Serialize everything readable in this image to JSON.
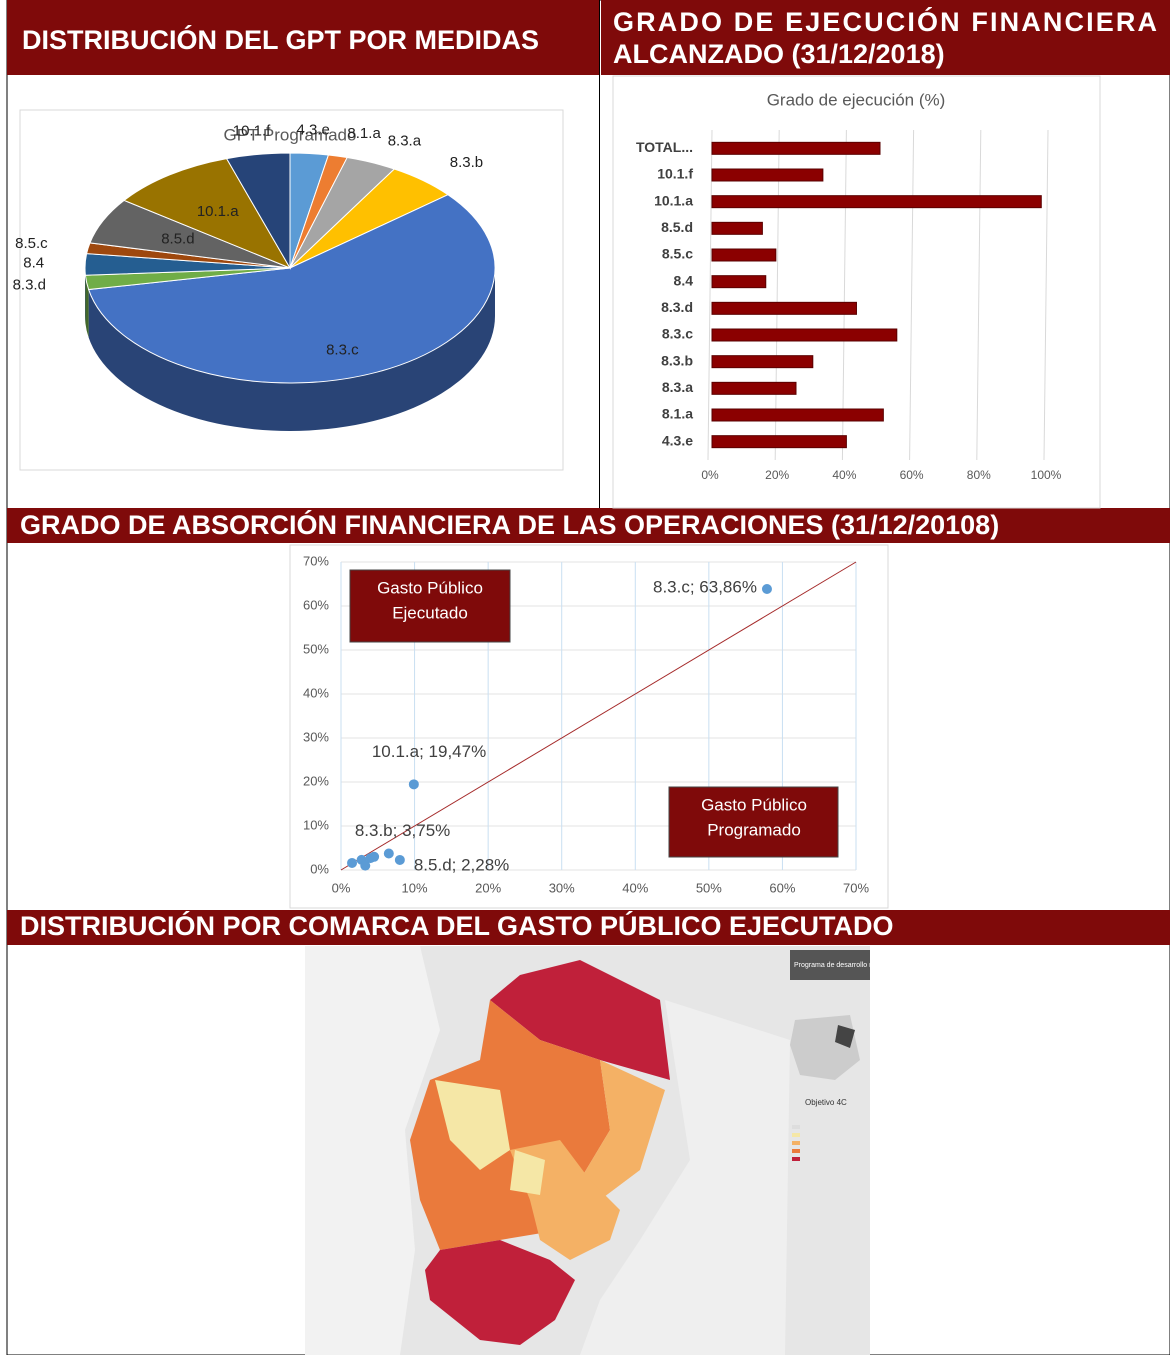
{
  "sections": {
    "distribution": "DISTRIBUCIÓN DEL GPT POR MEDIDAS",
    "execution": [
      "GRADO  DE  EJECUCIÓN  FINANCIERA",
      "ALCANZADO (31/12/2018)"
    ],
    "absorption": "GRADO DE ABSORCIÓN FINANCIERA DE LAS OPERACIONES (31/12/20108)",
    "comarca": "DISTRIBUCIÓN POR COMARCA DEL GASTO PÚBLICO EJECUTADO"
  },
  "chart_data": [
    {
      "type": "pie",
      "title": "GPT Programado",
      "categories": [
        "4.3.e",
        "8.1.a",
        "8.3.a",
        "8.3.b",
        "8.3.c",
        "8.3.d",
        "8.4",
        "8.5.c",
        "8.5.d",
        "10.1.a",
        "10.1.f"
      ],
      "values": [
        3,
        1.5,
        4,
        5.5,
        58,
        2,
        3,
        1.5,
        6.5,
        10,
        5
      ],
      "colors": [
        "#5b9bd5",
        "#ed7d31",
        "#a5a5a5",
        "#ffc000",
        "#4472c4",
        "#70ad47",
        "#255e91",
        "#9e480e",
        "#636363",
        "#997300",
        "#264478"
      ]
    },
    {
      "type": "hbar",
      "title": "Grado de ejecución (%)",
      "categories": [
        "TOTAL...",
        "10.1.f",
        "10.1.a",
        "8.5.d",
        "8.5.c",
        "8.4",
        "8.3.d",
        "8.3.c",
        "8.3.b",
        "8.3.a",
        "8.1.a",
        "4.3.e"
      ],
      "values": [
        50,
        33,
        98,
        15,
        19,
        16,
        43,
        55,
        30,
        25,
        51,
        40
      ],
      "color": "#8b0000",
      "xlim": [
        0,
        100
      ],
      "xticks": [
        {
          "value": 0,
          "label": "0%"
        },
        {
          "value": 20,
          "label": "20%"
        },
        {
          "value": 40,
          "label": "40%"
        },
        {
          "value": 60,
          "label": "60%"
        },
        {
          "value": 80,
          "label": "80%"
        },
        {
          "value": 100,
          "label": "100%"
        }
      ],
      "grid": true
    },
    {
      "type": "scatter",
      "x": [
        57.9,
        9.9,
        6.5,
        8,
        1.5,
        2.8,
        3.3,
        4,
        4.5
      ],
      "values": [
        63.86,
        19.47,
        3.75,
        2.28,
        1.6,
        2.3,
        1,
        2.7,
        3
      ],
      "value_labels": [
        "8.3.c; 63,86%",
        "10.1.a; 19,47%",
        "8.3.b; 3,75%",
        "8.5.d; 2,28%",
        null,
        null,
        null,
        null,
        null
      ],
      "color": "#5b9bd5",
      "xlim": [
        0,
        70
      ],
      "ylim": [
        0,
        70
      ],
      "xticks": [
        {
          "value": 0,
          "label": "0%"
        },
        {
          "value": 10,
          "label": "10%"
        },
        {
          "value": 20,
          "label": "20%"
        },
        {
          "value": 30,
          "label": "30%"
        },
        {
          "value": 40,
          "label": "40%"
        },
        {
          "value": 50,
          "label": "50%"
        },
        {
          "value": 60,
          "label": "60%"
        },
        {
          "value": 70,
          "label": "70%"
        }
      ],
      "yticks": [
        {
          "value": 0,
          "label": "0%"
        },
        {
          "value": 10,
          "label": "10%"
        },
        {
          "value": 20,
          "label": "20%"
        },
        {
          "value": 30,
          "label": "30%"
        },
        {
          "value": 40,
          "label": "40%"
        },
        {
          "value": 50,
          "label": "50%"
        },
        {
          "value": 60,
          "label": "60%"
        },
        {
          "value": 70,
          "label": "70%"
        }
      ],
      "annotations": [
        [
          "Gasto Público",
          "Ejecutado"
        ],
        [
          "Gasto Público",
          "Programado"
        ]
      ],
      "grid": true
    }
  ],
  "map": {
    "legend_title": "Programa de desarrollo rural",
    "legend_subtitle": "Objetivo 4C"
  }
}
